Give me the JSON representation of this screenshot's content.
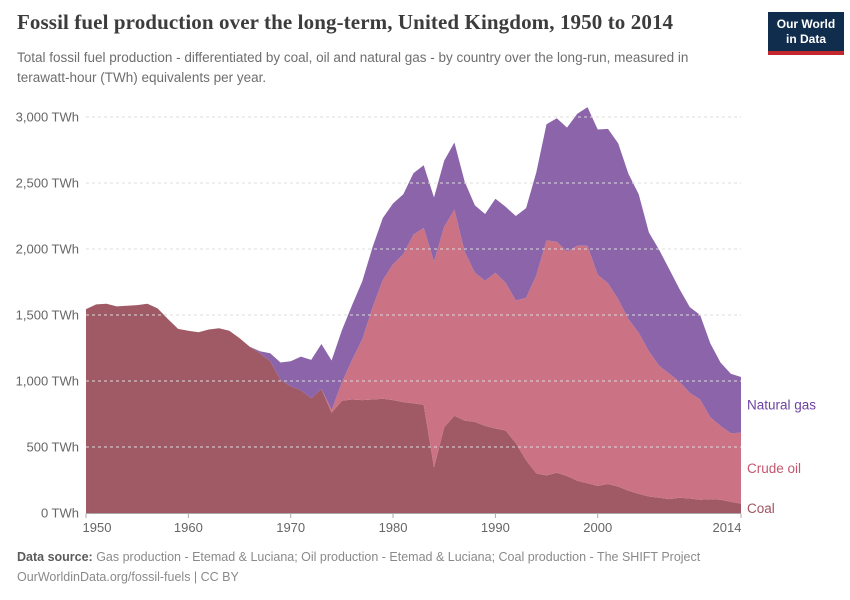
{
  "header": {
    "title": "Fossil fuel production over the long-term, United Kingdom, 1950 to 2014",
    "subtitle": "Total fossil fuel production - differentiated by coal, oil and natural gas - by country over the long-run, measured in terawatt-hour (TWh) equivalents per year.",
    "logo": {
      "line1": "Our World",
      "line2": "in Data"
    }
  },
  "footer": {
    "source_label": "Data source:",
    "source_text": " Gas production - Etemad & Luciana; Oil production - Etemad & Luciana; Coal production - The SHIFT Project",
    "attribution": "OurWorldinData.org/fossil-fuels | CC BY"
  },
  "chart_data": {
    "type": "area",
    "stacked": true,
    "title": "Fossil fuel production over the long-term, United Kingdom, 1950 to 2014",
    "xlabel": "",
    "ylabel": "TWh",
    "xlim": [
      1950,
      2014
    ],
    "ylim": [
      0,
      3000
    ],
    "grid": true,
    "legend_position": "right-edge-labels",
    "x": [
      1950,
      1951,
      1952,
      1953,
      1954,
      1955,
      1956,
      1957,
      1958,
      1959,
      1960,
      1961,
      1962,
      1963,
      1964,
      1965,
      1966,
      1967,
      1968,
      1969,
      1970,
      1971,
      1972,
      1973,
      1974,
      1975,
      1976,
      1977,
      1978,
      1979,
      1980,
      1981,
      1982,
      1983,
      1984,
      1985,
      1986,
      1987,
      1988,
      1989,
      1990,
      1991,
      1992,
      1993,
      1994,
      1995,
      1996,
      1997,
      1998,
      1999,
      2000,
      2001,
      2002,
      2003,
      2004,
      2005,
      2006,
      2007,
      2008,
      2009,
      2010,
      2011,
      2012,
      2013,
      2014
    ],
    "series": [
      {
        "name": "Coal",
        "color": "#a05a66",
        "label_color": "#a0525e",
        "values": [
          1545,
          1580,
          1585,
          1565,
          1570,
          1575,
          1585,
          1550,
          1470,
          1395,
          1380,
          1370,
          1390,
          1400,
          1380,
          1325,
          1260,
          1210,
          1150,
          1010,
          960,
          930,
          870,
          940,
          760,
          850,
          860,
          855,
          860,
          865,
          855,
          840,
          830,
          820,
          345,
          650,
          737,
          700,
          690,
          660,
          640,
          625,
          530,
          400,
          300,
          285,
          305,
          280,
          245,
          225,
          205,
          220,
          200,
          170,
          145,
          125,
          115,
          105,
          115,
          110,
          100,
          105,
          100,
          85,
          70
        ]
      },
      {
        "name": "Crude oil",
        "color": "#cc7285",
        "label_color": "#c4566f",
        "values": [
          0,
          0,
          0,
          0,
          0,
          0,
          0,
          0,
          0,
          0,
          0,
          0,
          0,
          0,
          0,
          0,
          0,
          0,
          0,
          0,
          0,
          0,
          0,
          0,
          20,
          140,
          300,
          460,
          700,
          900,
          1030,
          1120,
          1280,
          1340,
          1560,
          1520,
          1560,
          1280,
          1130,
          1100,
          1180,
          1120,
          1080,
          1230,
          1500,
          1780,
          1750,
          1700,
          1780,
          1800,
          1600,
          1520,
          1420,
          1300,
          1220,
          1100,
          1000,
          950,
          880,
          800,
          760,
          620,
          560,
          520,
          538
        ]
      },
      {
        "name": "Natural gas",
        "color": "#8b64a9",
        "label_color": "#6d42a1",
        "values": [
          0,
          0,
          0,
          0,
          0,
          0,
          0,
          0,
          0,
          0,
          0,
          0,
          0,
          0,
          0,
          0,
          0,
          15,
          60,
          130,
          190,
          255,
          290,
          340,
          375,
          395,
          415,
          440,
          455,
          470,
          460,
          455,
          465,
          475,
          485,
          500,
          510,
          530,
          510,
          505,
          560,
          575,
          640,
          680,
          780,
          880,
          935,
          940,
          1000,
          1050,
          1100,
          1170,
          1180,
          1100,
          1050,
          900,
          880,
          790,
          700,
          650,
          640,
          560,
          480,
          450,
          422
        ]
      }
    ],
    "x_ticks": [
      {
        "value": 1950,
        "label": "1950"
      },
      {
        "value": 1960,
        "label": "1960"
      },
      {
        "value": 1970,
        "label": "1970"
      },
      {
        "value": 1980,
        "label": "1980"
      },
      {
        "value": 1990,
        "label": "1990"
      },
      {
        "value": 2000,
        "label": "2000"
      },
      {
        "value": 2014,
        "label": "2014"
      }
    ],
    "y_ticks": [
      {
        "value": 0,
        "label": "0 TWh"
      },
      {
        "value": 500,
        "label": "500 TWh"
      },
      {
        "value": 1000,
        "label": "1,000 TWh"
      },
      {
        "value": 1500,
        "label": "1,500 TWh"
      },
      {
        "value": 2000,
        "label": "2,000 TWh"
      },
      {
        "value": 2500,
        "label": "2,500 TWh"
      },
      {
        "value": 3000,
        "label": "3,000 TWh"
      }
    ]
  }
}
